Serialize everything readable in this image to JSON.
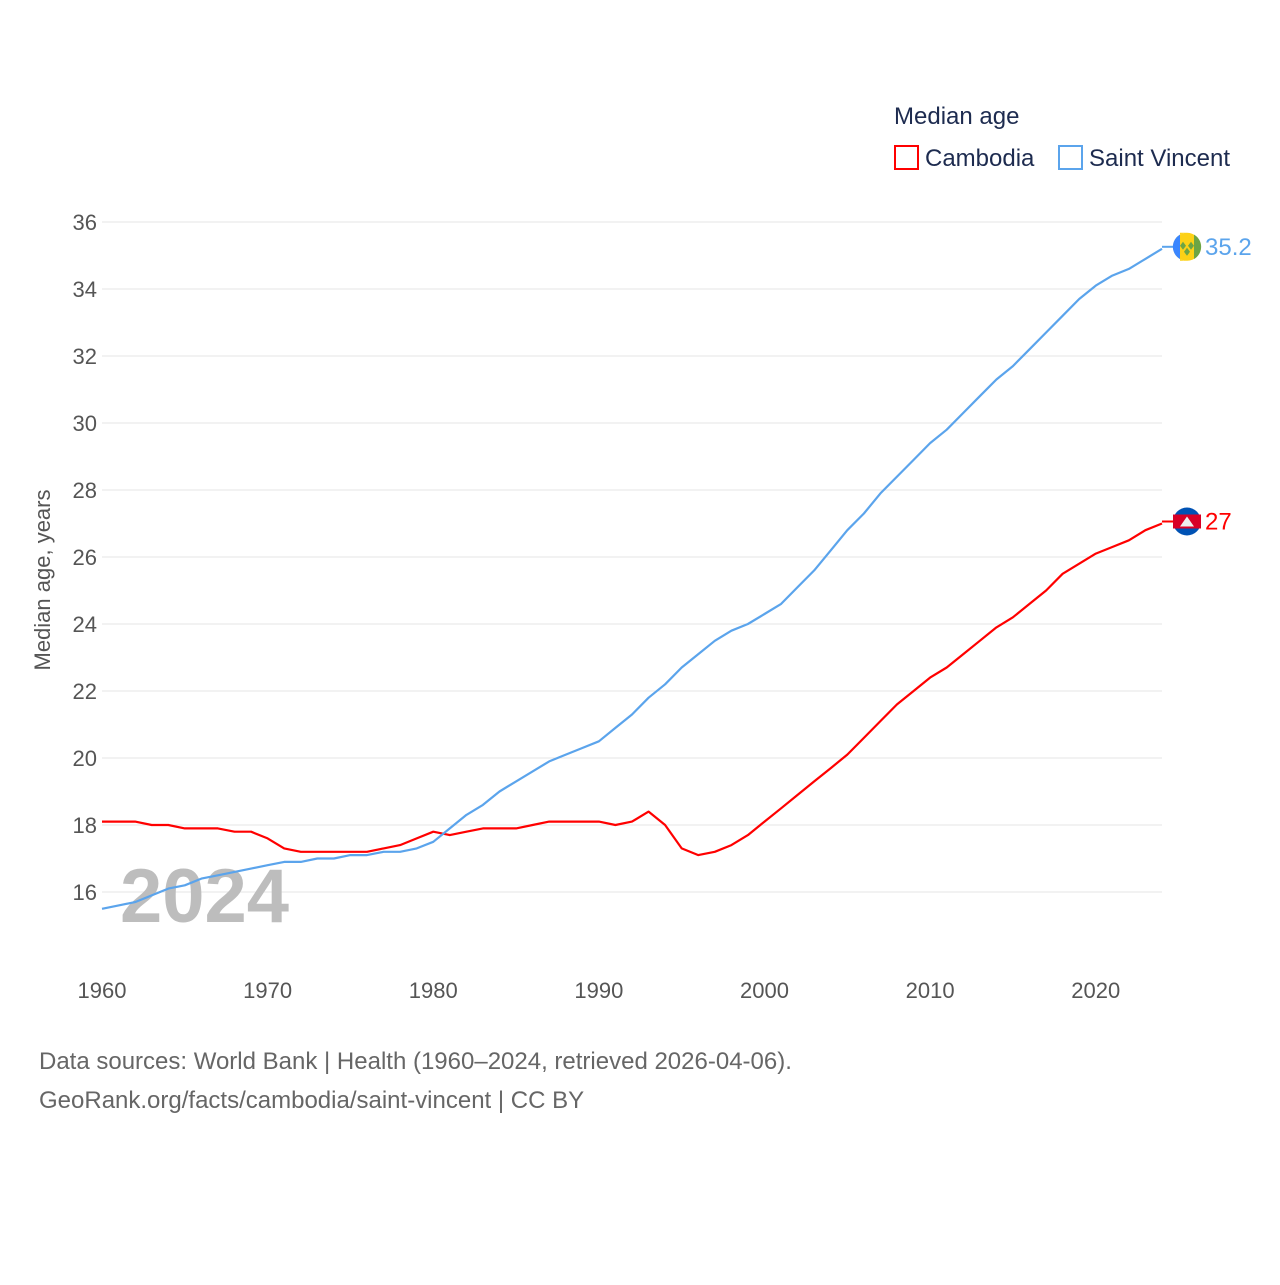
{
  "chart_data": {
    "type": "line",
    "title": "Median age",
    "ylabel": "Median age, years",
    "xlabel": "",
    "xlim": [
      1960,
      2024
    ],
    "ylim": [
      15,
      36.5
    ],
    "xticks": [
      1960,
      1970,
      1980,
      1990,
      2000,
      2010,
      2020
    ],
    "yticks": [
      16,
      18,
      20,
      22,
      24,
      26,
      28,
      30,
      32,
      34,
      36
    ],
    "grid": true,
    "legend_placement": "top-right",
    "year_label": "2024",
    "x": [
      1960,
      1961,
      1962,
      1963,
      1964,
      1965,
      1966,
      1967,
      1968,
      1969,
      1970,
      1971,
      1972,
      1973,
      1974,
      1975,
      1976,
      1977,
      1978,
      1979,
      1980,
      1981,
      1982,
      1983,
      1984,
      1985,
      1986,
      1987,
      1988,
      1989,
      1990,
      1991,
      1992,
      1993,
      1994,
      1995,
      1996,
      1997,
      1998,
      1999,
      2000,
      2001,
      2002,
      2003,
      2004,
      2005,
      2006,
      2007,
      2008,
      2009,
      2010,
      2011,
      2012,
      2013,
      2014,
      2015,
      2016,
      2017,
      2018,
      2019,
      2020,
      2021,
      2022,
      2023,
      2024
    ],
    "series": [
      {
        "name": "Cambodia",
        "color": "#ff0000",
        "end_label": "27",
        "values": [
          18.1,
          18.1,
          18.1,
          18.0,
          18.0,
          17.9,
          17.9,
          17.9,
          17.8,
          17.8,
          17.6,
          17.3,
          17.2,
          17.2,
          17.2,
          17.2,
          17.2,
          17.3,
          17.4,
          17.6,
          17.8,
          17.7,
          17.8,
          17.9,
          17.9,
          17.9,
          18.0,
          18.1,
          18.1,
          18.1,
          18.1,
          18.0,
          18.1,
          18.4,
          18.0,
          17.3,
          17.1,
          17.2,
          17.4,
          17.7,
          18.1,
          18.5,
          18.9,
          19.3,
          19.7,
          20.1,
          20.6,
          21.1,
          21.6,
          22.0,
          22.4,
          22.7,
          23.1,
          23.5,
          23.9,
          24.2,
          24.6,
          25.0,
          25.5,
          25.8,
          26.1,
          26.3,
          26.5,
          26.8,
          27.0
        ]
      },
      {
        "name": "Saint Vincent",
        "color": "#5ba4ec",
        "end_label": "35.2",
        "values": [
          15.5,
          15.6,
          15.7,
          15.9,
          16.1,
          16.2,
          16.4,
          16.5,
          16.6,
          16.7,
          16.8,
          16.9,
          16.9,
          17.0,
          17.0,
          17.1,
          17.1,
          17.2,
          17.2,
          17.3,
          17.5,
          17.9,
          18.3,
          18.6,
          19.0,
          19.3,
          19.6,
          19.9,
          20.1,
          20.3,
          20.5,
          20.9,
          21.3,
          21.8,
          22.2,
          22.7,
          23.1,
          23.5,
          23.8,
          24.0,
          24.3,
          24.6,
          25.1,
          25.6,
          26.2,
          26.8,
          27.3,
          27.9,
          28.4,
          28.9,
          29.4,
          29.8,
          30.3,
          30.8,
          31.3,
          31.7,
          32.2,
          32.7,
          33.2,
          33.7,
          34.1,
          34.4,
          34.6,
          34.9,
          35.2
        ]
      }
    ]
  },
  "footer": {
    "line1": "Data sources: World Bank | Health (1960–2024, retrieved 2026-04-06).",
    "line2": "GeoRank.org/facts/cambodia/saint-vincent | CC BY"
  }
}
